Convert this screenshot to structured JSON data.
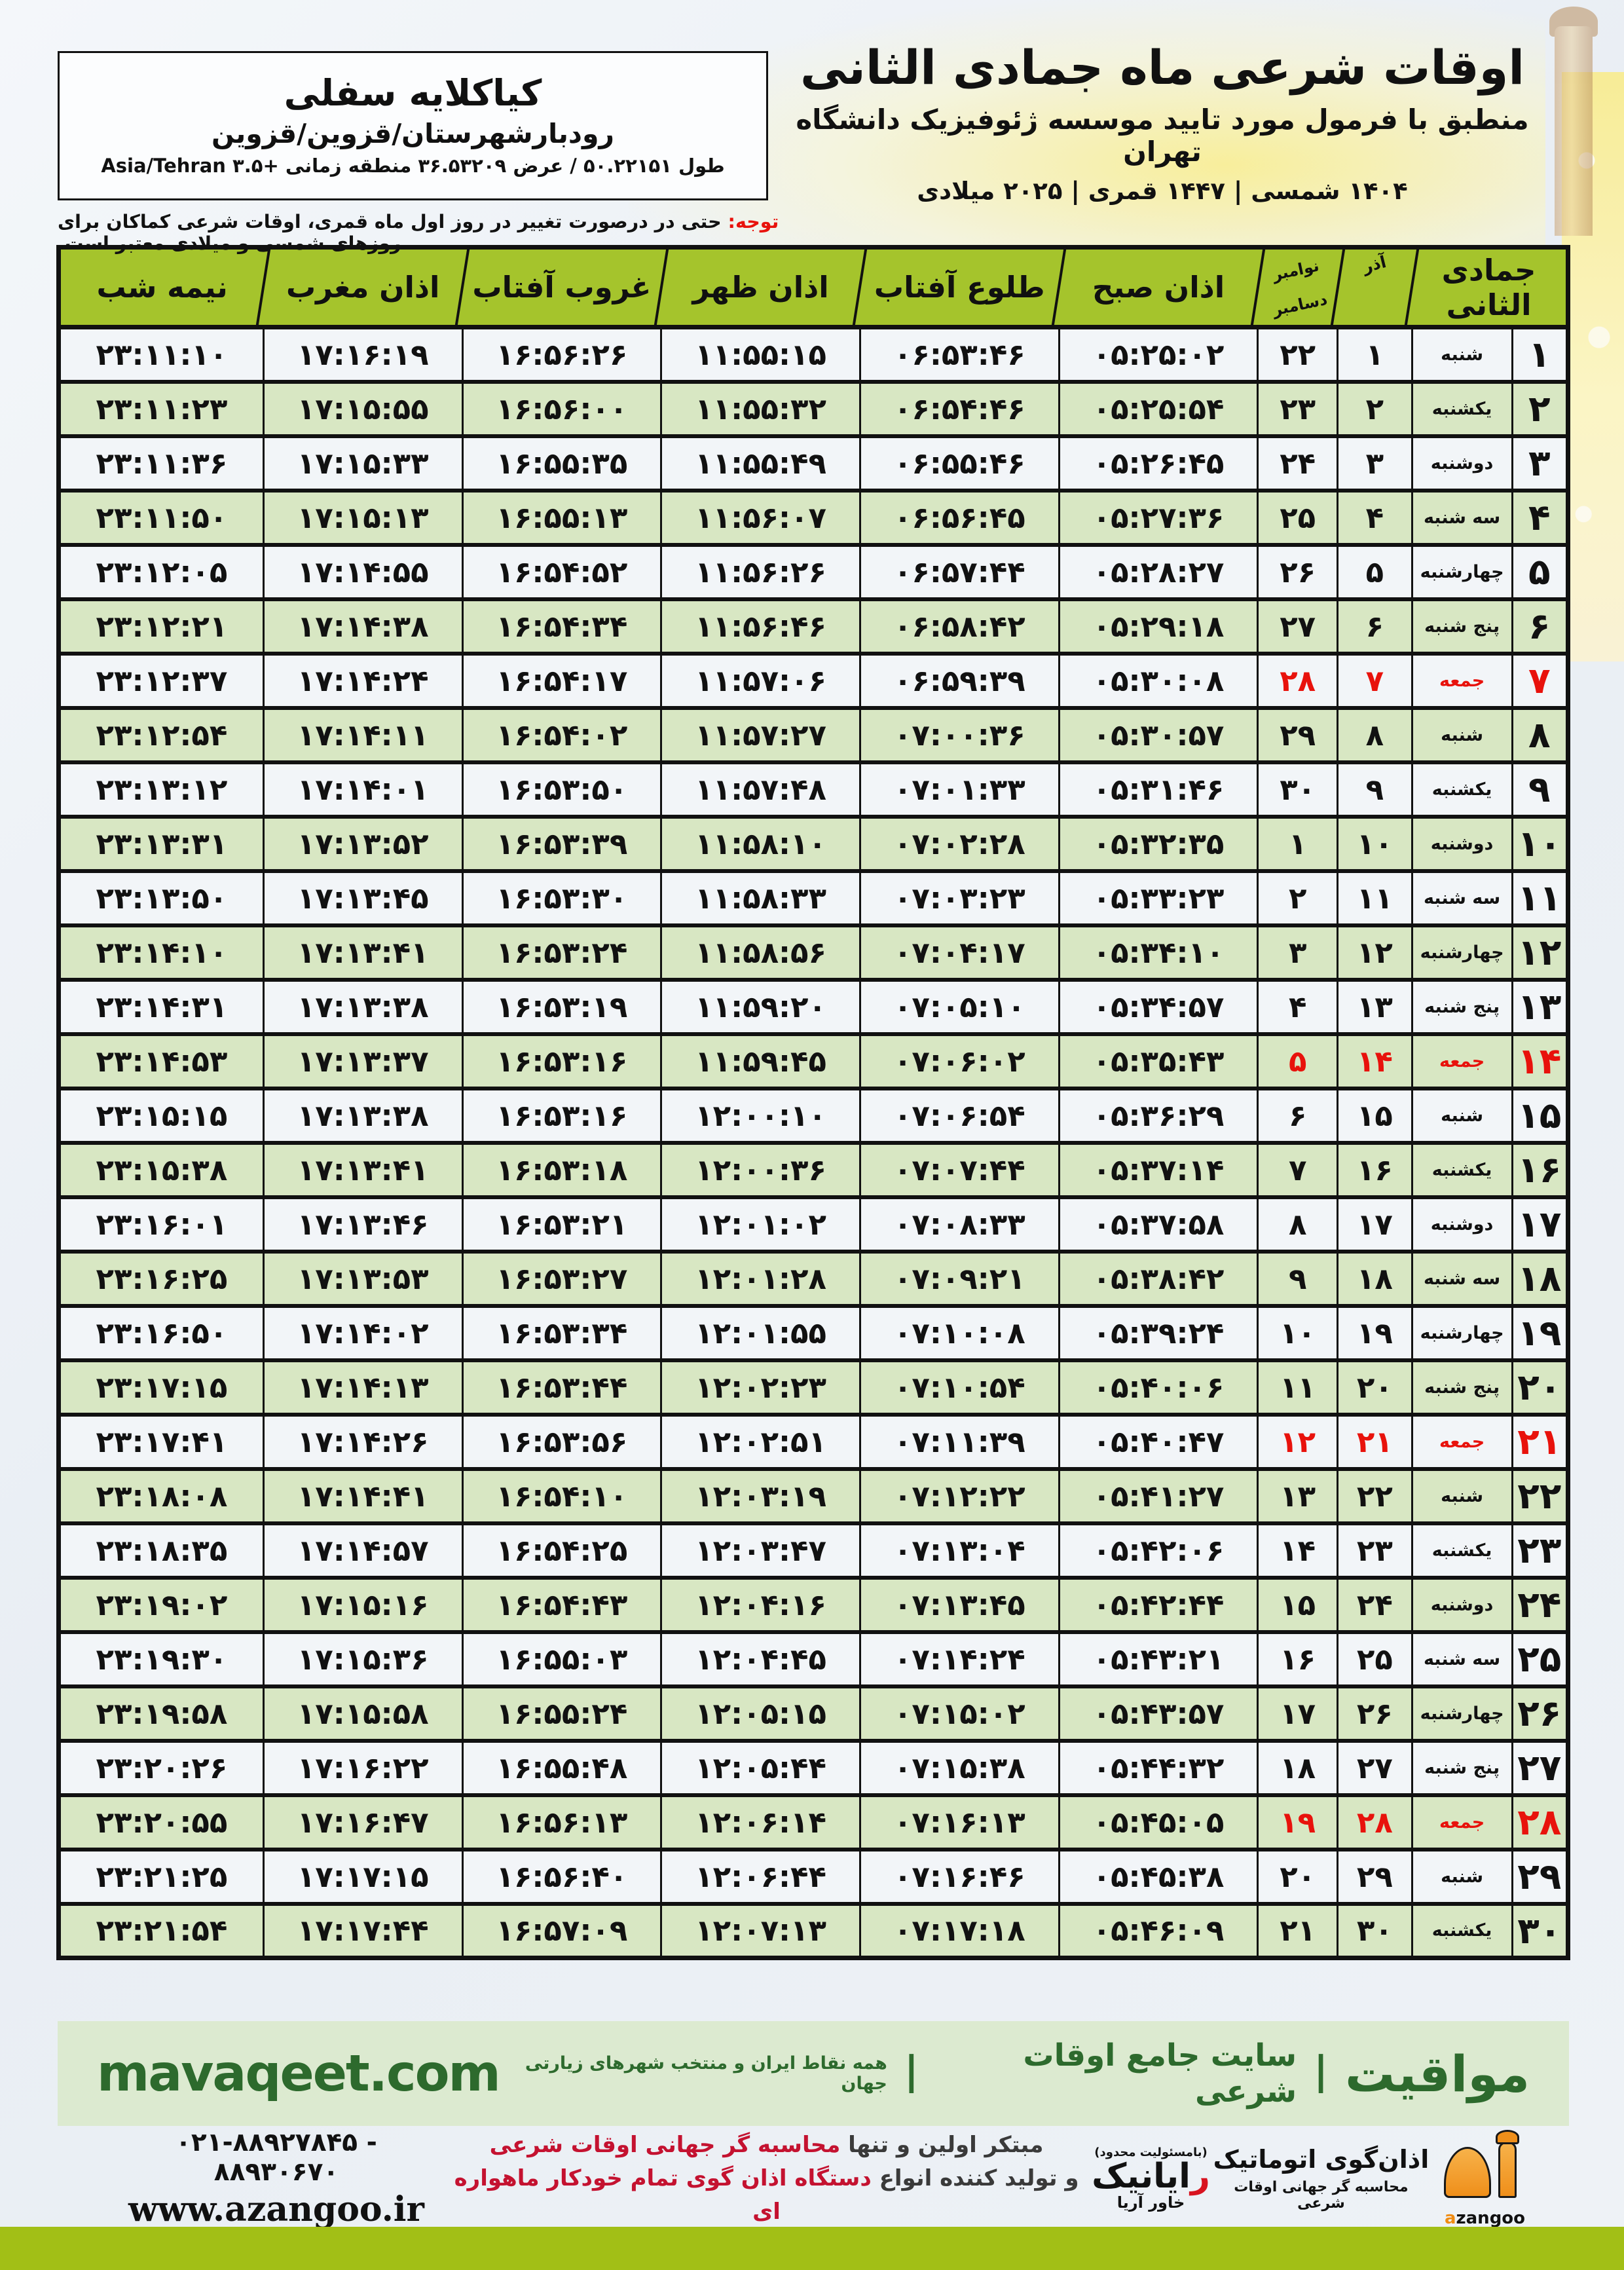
{
  "location": {
    "name": "کیاکلایه سفلی",
    "region": "رودبارشهرستان/قزوین/قزوین",
    "coordinates": "طول ۵۰.۲۲۱۵۱ / عرض ۳۶.۵۳۲۰۹ منطقه زمانی +۳.۵ Asia/Tehran"
  },
  "title": {
    "main": "اوقات شرعی ماه جمادی الثانی",
    "subtitle": "منطبق با فرمول مورد تایید موسسه ژئوفیزیک دانشگاه تهران",
    "years": "۱۴۰۴ شمسی | ۱۴۴۷ قمری | ۲۰۲۵ میلادی"
  },
  "notice": {
    "label": "توجه:",
    "text": " حتی در درصورت تغییر در روز اول ماه قمری، اوقات شرعی کماکان برای روزهای شمسی و میلادی معتبر است."
  },
  "table": {
    "headers": {
      "hijri_month": "جمادی الثانی",
      "solar_month": "آذر",
      "gregorian_month_top": "نوامبر",
      "gregorian_month_bottom": "دسامبر",
      "fajr": "اذان صبح",
      "sunrise": "طلوع آفتاب",
      "noon": "اذان ظهر",
      "sunset": "غروب آفتاب",
      "maghrib": "اذان مغرب",
      "midnight": "نیمه شب"
    },
    "rows": [
      {
        "day": "۱",
        "weekday": "شنبه",
        "azar": "۱",
        "greg": "۲۲",
        "fajr": "۰۵:۲۵:۰۲",
        "sunrise": "۰۶:۵۳:۴۶",
        "noon": "۱۱:۵۵:۱۵",
        "sunset": "۱۶:۵۶:۲۶",
        "maghrib": "۱۷:۱۶:۱۹",
        "midnight": "۲۳:۱۱:۱۰",
        "friday": false
      },
      {
        "day": "۲",
        "weekday": "یکشنبه",
        "azar": "۲",
        "greg": "۲۳",
        "fajr": "۰۵:۲۵:۵۴",
        "sunrise": "۰۶:۵۴:۴۶",
        "noon": "۱۱:۵۵:۳۲",
        "sunset": "۱۶:۵۶:۰۰",
        "maghrib": "۱۷:۱۵:۵۵",
        "midnight": "۲۳:۱۱:۲۳",
        "friday": false
      },
      {
        "day": "۳",
        "weekday": "دوشنبه",
        "azar": "۳",
        "greg": "۲۴",
        "fajr": "۰۵:۲۶:۴۵",
        "sunrise": "۰۶:۵۵:۴۶",
        "noon": "۱۱:۵۵:۴۹",
        "sunset": "۱۶:۵۵:۳۵",
        "maghrib": "۱۷:۱۵:۳۳",
        "midnight": "۲۳:۱۱:۳۶",
        "friday": false
      },
      {
        "day": "۴",
        "weekday": "سه شنبه",
        "azar": "۴",
        "greg": "۲۵",
        "fajr": "۰۵:۲۷:۳۶",
        "sunrise": "۰۶:۵۶:۴۵",
        "noon": "۱۱:۵۶:۰۷",
        "sunset": "۱۶:۵۵:۱۳",
        "maghrib": "۱۷:۱۵:۱۳",
        "midnight": "۲۳:۱۱:۵۰",
        "friday": false
      },
      {
        "day": "۵",
        "weekday": "چهارشنبه",
        "azar": "۵",
        "greg": "۲۶",
        "fajr": "۰۵:۲۸:۲۷",
        "sunrise": "۰۶:۵۷:۴۴",
        "noon": "۱۱:۵۶:۲۶",
        "sunset": "۱۶:۵۴:۵۲",
        "maghrib": "۱۷:۱۴:۵۵",
        "midnight": "۲۳:۱۲:۰۵",
        "friday": false
      },
      {
        "day": "۶",
        "weekday": "پنج شنبه",
        "azar": "۶",
        "greg": "۲۷",
        "fajr": "۰۵:۲۹:۱۸",
        "sunrise": "۰۶:۵۸:۴۲",
        "noon": "۱۱:۵۶:۴۶",
        "sunset": "۱۶:۵۴:۳۴",
        "maghrib": "۱۷:۱۴:۳۸",
        "midnight": "۲۳:۱۲:۲۱",
        "friday": false
      },
      {
        "day": "۷",
        "weekday": "جمعه",
        "azar": "۷",
        "greg": "۲۸",
        "fajr": "۰۵:۳۰:۰۸",
        "sunrise": "۰۶:۵۹:۳۹",
        "noon": "۱۱:۵۷:۰۶",
        "sunset": "۱۶:۵۴:۱۷",
        "maghrib": "۱۷:۱۴:۲۴",
        "midnight": "۲۳:۱۲:۳۷",
        "friday": true
      },
      {
        "day": "۸",
        "weekday": "شنبه",
        "azar": "۸",
        "greg": "۲۹",
        "fajr": "۰۵:۳۰:۵۷",
        "sunrise": "۰۷:۰۰:۳۶",
        "noon": "۱۱:۵۷:۲۷",
        "sunset": "۱۶:۵۴:۰۲",
        "maghrib": "۱۷:۱۴:۱۱",
        "midnight": "۲۳:۱۲:۵۴",
        "friday": false
      },
      {
        "day": "۹",
        "weekday": "یکشنبه",
        "azar": "۹",
        "greg": "۳۰",
        "fajr": "۰۵:۳۱:۴۶",
        "sunrise": "۰۷:۰۱:۳۳",
        "noon": "۱۱:۵۷:۴۸",
        "sunset": "۱۶:۵۳:۵۰",
        "maghrib": "۱۷:۱۴:۰۱",
        "midnight": "۲۳:۱۳:۱۲",
        "friday": false
      },
      {
        "day": "۱۰",
        "weekday": "دوشنبه",
        "azar": "۱۰",
        "greg": "۱",
        "fajr": "۰۵:۳۲:۳۵",
        "sunrise": "۰۷:۰۲:۲۸",
        "noon": "۱۱:۵۸:۱۰",
        "sunset": "۱۶:۵۳:۳۹",
        "maghrib": "۱۷:۱۳:۵۲",
        "midnight": "۲۳:۱۳:۳۱",
        "friday": false
      },
      {
        "day": "۱۱",
        "weekday": "سه شنبه",
        "azar": "۱۱",
        "greg": "۲",
        "fajr": "۰۵:۳۳:۲۳",
        "sunrise": "۰۷:۰۳:۲۳",
        "noon": "۱۱:۵۸:۳۳",
        "sunset": "۱۶:۵۳:۳۰",
        "maghrib": "۱۷:۱۳:۴۵",
        "midnight": "۲۳:۱۳:۵۰",
        "friday": false
      },
      {
        "day": "۱۲",
        "weekday": "چهارشنبه",
        "azar": "۱۲",
        "greg": "۳",
        "fajr": "۰۵:۳۴:۱۰",
        "sunrise": "۰۷:۰۴:۱۷",
        "noon": "۱۱:۵۸:۵۶",
        "sunset": "۱۶:۵۳:۲۴",
        "maghrib": "۱۷:۱۳:۴۱",
        "midnight": "۲۳:۱۴:۱۰",
        "friday": false
      },
      {
        "day": "۱۳",
        "weekday": "پنج شنبه",
        "azar": "۱۳",
        "greg": "۴",
        "fajr": "۰۵:۳۴:۵۷",
        "sunrise": "۰۷:۰۵:۱۰",
        "noon": "۱۱:۵۹:۲۰",
        "sunset": "۱۶:۵۳:۱۹",
        "maghrib": "۱۷:۱۳:۳۸",
        "midnight": "۲۳:۱۴:۳۱",
        "friday": false
      },
      {
        "day": "۱۴",
        "weekday": "جمعه",
        "azar": "۱۴",
        "greg": "۵",
        "fajr": "۰۵:۳۵:۴۳",
        "sunrise": "۰۷:۰۶:۰۲",
        "noon": "۱۱:۵۹:۴۵",
        "sunset": "۱۶:۵۳:۱۶",
        "maghrib": "۱۷:۱۳:۳۷",
        "midnight": "۲۳:۱۴:۵۳",
        "friday": true
      },
      {
        "day": "۱۵",
        "weekday": "شنبه",
        "azar": "۱۵",
        "greg": "۶",
        "fajr": "۰۵:۳۶:۲۹",
        "sunrise": "۰۷:۰۶:۵۴",
        "noon": "۱۲:۰۰:۱۰",
        "sunset": "۱۶:۵۳:۱۶",
        "maghrib": "۱۷:۱۳:۳۸",
        "midnight": "۲۳:۱۵:۱۵",
        "friday": false
      },
      {
        "day": "۱۶",
        "weekday": "یکشنبه",
        "azar": "۱۶",
        "greg": "۷",
        "fajr": "۰۵:۳۷:۱۴",
        "sunrise": "۰۷:۰۷:۴۴",
        "noon": "۱۲:۰۰:۳۶",
        "sunset": "۱۶:۵۳:۱۸",
        "maghrib": "۱۷:۱۳:۴۱",
        "midnight": "۲۳:۱۵:۳۸",
        "friday": false
      },
      {
        "day": "۱۷",
        "weekday": "دوشنبه",
        "azar": "۱۷",
        "greg": "۸",
        "fajr": "۰۵:۳۷:۵۸",
        "sunrise": "۰۷:۰۸:۳۳",
        "noon": "۱۲:۰۱:۰۲",
        "sunset": "۱۶:۵۳:۲۱",
        "maghrib": "۱۷:۱۳:۴۶",
        "midnight": "۲۳:۱۶:۰۱",
        "friday": false
      },
      {
        "day": "۱۸",
        "weekday": "سه شنبه",
        "azar": "۱۸",
        "greg": "۹",
        "fajr": "۰۵:۳۸:۴۲",
        "sunrise": "۰۷:۰۹:۲۱",
        "noon": "۱۲:۰۱:۲۸",
        "sunset": "۱۶:۵۳:۲۷",
        "maghrib": "۱۷:۱۳:۵۳",
        "midnight": "۲۳:۱۶:۲۵",
        "friday": false
      },
      {
        "day": "۱۹",
        "weekday": "چهارشنبه",
        "azar": "۱۹",
        "greg": "۱۰",
        "fajr": "۰۵:۳۹:۲۴",
        "sunrise": "۰۷:۱۰:۰۸",
        "noon": "۱۲:۰۱:۵۵",
        "sunset": "۱۶:۵۳:۳۴",
        "maghrib": "۱۷:۱۴:۰۲",
        "midnight": "۲۳:۱۶:۵۰",
        "friday": false
      },
      {
        "day": "۲۰",
        "weekday": "پنج شنبه",
        "azar": "۲۰",
        "greg": "۱۱",
        "fajr": "۰۵:۴۰:۰۶",
        "sunrise": "۰۷:۱۰:۵۴",
        "noon": "۱۲:۰۲:۲۳",
        "sunset": "۱۶:۵۳:۴۴",
        "maghrib": "۱۷:۱۴:۱۳",
        "midnight": "۲۳:۱۷:۱۵",
        "friday": false
      },
      {
        "day": "۲۱",
        "weekday": "جمعه",
        "azar": "۲۱",
        "greg": "۱۲",
        "fajr": "۰۵:۴۰:۴۷",
        "sunrise": "۰۷:۱۱:۳۹",
        "noon": "۱۲:۰۲:۵۱",
        "sunset": "۱۶:۵۳:۵۶",
        "maghrib": "۱۷:۱۴:۲۶",
        "midnight": "۲۳:۱۷:۴۱",
        "friday": true
      },
      {
        "day": "۲۲",
        "weekday": "شنبه",
        "azar": "۲۲",
        "greg": "۱۳",
        "fajr": "۰۵:۴۱:۲۷",
        "sunrise": "۰۷:۱۲:۲۲",
        "noon": "۱۲:۰۳:۱۹",
        "sunset": "۱۶:۵۴:۱۰",
        "maghrib": "۱۷:۱۴:۴۱",
        "midnight": "۲۳:۱۸:۰۸",
        "friday": false
      },
      {
        "day": "۲۳",
        "weekday": "یکشنبه",
        "azar": "۲۳",
        "greg": "۱۴",
        "fajr": "۰۵:۴۲:۰۶",
        "sunrise": "۰۷:۱۳:۰۴",
        "noon": "۱۲:۰۳:۴۷",
        "sunset": "۱۶:۵۴:۲۵",
        "maghrib": "۱۷:۱۴:۵۷",
        "midnight": "۲۳:۱۸:۳۵",
        "friday": false
      },
      {
        "day": "۲۴",
        "weekday": "دوشنبه",
        "azar": "۲۴",
        "greg": "۱۵",
        "fajr": "۰۵:۴۲:۴۴",
        "sunrise": "۰۷:۱۳:۴۵",
        "noon": "۱۲:۰۴:۱۶",
        "sunset": "۱۶:۵۴:۴۳",
        "maghrib": "۱۷:۱۵:۱۶",
        "midnight": "۲۳:۱۹:۰۲",
        "friday": false
      },
      {
        "day": "۲۵",
        "weekday": "سه شنبه",
        "azar": "۲۵",
        "greg": "۱۶",
        "fajr": "۰۵:۴۳:۲۱",
        "sunrise": "۰۷:۱۴:۲۴",
        "noon": "۱۲:۰۴:۴۵",
        "sunset": "۱۶:۵۵:۰۳",
        "maghrib": "۱۷:۱۵:۳۶",
        "midnight": "۲۳:۱۹:۳۰",
        "friday": false
      },
      {
        "day": "۲۶",
        "weekday": "چهارشنبه",
        "azar": "۲۶",
        "greg": "۱۷",
        "fajr": "۰۵:۴۳:۵۷",
        "sunrise": "۰۷:۱۵:۰۲",
        "noon": "۱۲:۰۵:۱۵",
        "sunset": "۱۶:۵۵:۲۴",
        "maghrib": "۱۷:۱۵:۵۸",
        "midnight": "۲۳:۱۹:۵۸",
        "friday": false
      },
      {
        "day": "۲۷",
        "weekday": "پنج شنبه",
        "azar": "۲۷",
        "greg": "۱۸",
        "fajr": "۰۵:۴۴:۳۲",
        "sunrise": "۰۷:۱۵:۳۸",
        "noon": "۱۲:۰۵:۴۴",
        "sunset": "۱۶:۵۵:۴۸",
        "maghrib": "۱۷:۱۶:۲۲",
        "midnight": "۲۳:۲۰:۲۶",
        "friday": false
      },
      {
        "day": "۲۸",
        "weekday": "جمعه",
        "azar": "۲۸",
        "greg": "۱۹",
        "fajr": "۰۵:۴۵:۰۵",
        "sunrise": "۰۷:۱۶:۱۳",
        "noon": "۱۲:۰۶:۱۴",
        "sunset": "۱۶:۵۶:۱۳",
        "maghrib": "۱۷:۱۶:۴۷",
        "midnight": "۲۳:۲۰:۵۵",
        "friday": true
      },
      {
        "day": "۲۹",
        "weekday": "شنبه",
        "azar": "۲۹",
        "greg": "۲۰",
        "fajr": "۰۵:۴۵:۳۸",
        "sunrise": "۰۷:۱۶:۴۶",
        "noon": "۱۲:۰۶:۴۴",
        "sunset": "۱۶:۵۶:۴۰",
        "maghrib": "۱۷:۱۷:۱۵",
        "midnight": "۲۳:۲۱:۲۵",
        "friday": false
      },
      {
        "day": "۳۰",
        "weekday": "یکشنبه",
        "azar": "۳۰",
        "greg": "۲۱",
        "fajr": "۰۵:۴۶:۰۹",
        "sunrise": "۰۷:۱۷:۱۸",
        "noon": "۱۲:۰۷:۱۳",
        "sunset": "۱۶:۵۷:۰۹",
        "maghrib": "۱۷:۱۷:۴۴",
        "midnight": "۲۳:۲۱:۵۴",
        "friday": false
      }
    ]
  },
  "colors": {
    "header_lime": "#a5c42c",
    "row_green": "#d8e7c3",
    "row_light": "#f2f5f8",
    "friday_red": "#e8120c",
    "band_green_bg": "#dcead0",
    "band_green_text": "#2d6a2d",
    "bottom_bar_lime": "#a2bf16",
    "promo_red": "#c41230",
    "azangoo_orange": "#ef8f1a"
  },
  "mavaqeet": {
    "brand": "مواقیت",
    "separator": "|",
    "tagline": "سایت جامع اوقات شرعی",
    "subtext": "همه نقاط ایران و منتخب شهرهای زیارتی جهان",
    "site": "mavaqeet.com"
  },
  "footer": {
    "phone": "۰۲۱-۸۸۹۲۷۸۴۵ - ۸۸۹۳۰۶۷۰",
    "website": "www.azangoo.ir",
    "promo_line1_black": "مبتکر اولین و تنها ",
    "promo_line1_red": "محاسبه گر جهانی اوقات شرعی",
    "promo_line2_black": "و تولید کننده انواع ",
    "promo_line2_red": "دستگاه اذان گوی تمام خودکار ماهواره ای",
    "rayanik_note": "(بامسئولیت محدود)",
    "rayanik_initial": "ر",
    "rayanik_rest": "ایانیک",
    "rayanik_sub": "خاور آریا",
    "azangoo_title": "اذان‌گوی اتوماتیک",
    "azangoo_sub": "محاسبه گر جهانی اوقات شرعی",
    "azangoo_latin_a": "a",
    "azangoo_latin_rest": "zangoo"
  }
}
